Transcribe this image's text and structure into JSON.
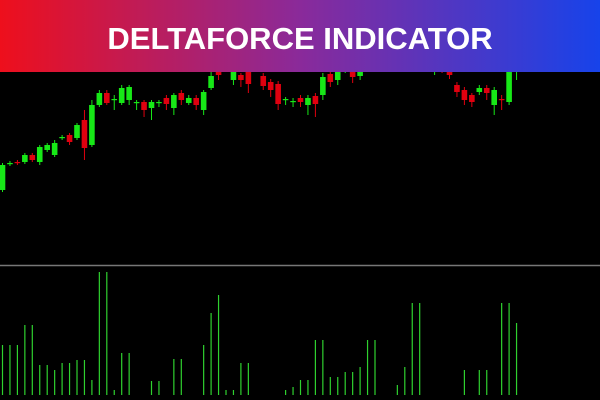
{
  "chart_data": [
    {
      "type": "candlestick",
      "title": "DELTAFORCE INDICATOR",
      "up_color": "#17e817",
      "down_color": "#e0000f",
      "ylim": [
        0,
        265
      ],
      "open": [
        75,
        101,
        103,
        103,
        110,
        103,
        115,
        110,
        127,
        130,
        127,
        145,
        120,
        160,
        172,
        165,
        162,
        165,
        162,
        163,
        157,
        162,
        167,
        157,
        172,
        162,
        167,
        155,
        177,
        195,
        197,
        185,
        190,
        193,
        195,
        189,
        183,
        181,
        165,
        163,
        167,
        160,
        169,
        170,
        191,
        185,
        195,
        197,
        189,
        200,
        207,
        203,
        210,
        206,
        200,
        205,
        199,
        203,
        193,
        205,
        197,
        180,
        175,
        170,
        173,
        177,
        160,
        166,
        163,
        195
      ],
      "close": [
        100,
        102,
        102,
        110,
        105,
        118,
        120,
        122,
        128,
        123,
        140,
        117,
        160,
        172,
        162,
        166,
        177,
        178,
        163,
        155,
        163,
        163,
        161,
        170,
        165,
        167,
        160,
        173,
        189,
        190,
        205,
        193,
        185,
        181,
        205,
        179,
        175,
        161,
        166,
        164,
        163,
        167,
        161,
        188,
        183,
        193,
        205,
        188,
        197,
        207,
        203,
        210,
        206,
        200,
        205,
        199,
        203,
        198,
        205,
        197,
        190,
        173,
        165,
        163,
        177,
        172,
        175,
        165,
        195,
        205
      ],
      "high": [
        102,
        104,
        105,
        112,
        112,
        120,
        122,
        125,
        130,
        132,
        142,
        155,
        165,
        175,
        175,
        170,
        180,
        180,
        165,
        165,
        165,
        165,
        170,
        172,
        175,
        170,
        170,
        175,
        195,
        200,
        210,
        198,
        192,
        196,
        210,
        192,
        186,
        184,
        168,
        167,
        170,
        170,
        172,
        192,
        195,
        195,
        210,
        200,
        200,
        210,
        212,
        214,
        213,
        209,
        208,
        207,
        206,
        205,
        210,
        210,
        200,
        183,
        178,
        172,
        180,
        180,
        178,
        170,
        200,
        210
      ],
      "low": [
        73,
        99,
        100,
        101,
        103,
        100,
        113,
        108,
        125,
        120,
        125,
        105,
        118,
        158,
        160,
        155,
        160,
        160,
        155,
        148,
        145,
        158,
        155,
        150,
        160,
        160,
        155,
        150,
        175,
        185,
        195,
        180,
        178,
        172,
        193,
        175,
        168,
        155,
        160,
        158,
        158,
        150,
        148,
        165,
        178,
        180,
        192,
        182,
        185,
        197,
        200,
        201,
        203,
        197,
        198,
        196,
        196,
        195,
        190,
        192,
        186,
        168,
        160,
        158,
        170,
        165,
        150,
        155,
        160,
        185
      ]
    },
    {
      "type": "bar",
      "color": "#2fd12f",
      "ylim": [
        0,
        129
      ],
      "values": [
        50,
        50,
        50,
        70,
        70,
        30,
        30,
        25,
        32,
        32,
        35,
        35,
        15,
        123,
        123,
        5,
        42,
        42,
        0,
        0,
        14,
        14,
        0,
        36,
        36,
        0,
        0,
        50,
        82,
        100,
        5,
        5,
        32,
        32,
        0,
        0,
        0,
        0,
        5,
        8,
        15,
        15,
        55,
        55,
        18,
        18,
        23,
        23,
        28,
        55,
        55,
        0,
        0,
        10,
        28,
        92,
        92,
        0,
        0,
        0,
        0,
        0,
        25,
        0,
        25,
        25,
        0,
        92,
        92,
        72
      ]
    }
  ]
}
